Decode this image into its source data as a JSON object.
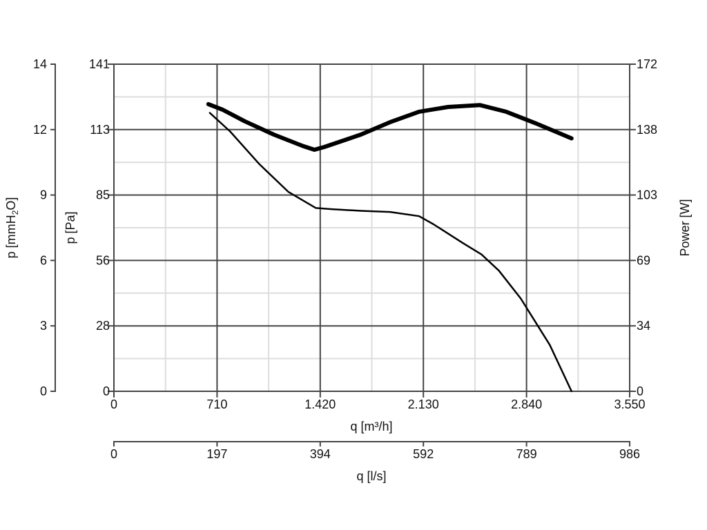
{
  "chart_data": {
    "type": "line",
    "title": "",
    "xlabel": "q [m³/h]",
    "x_secondary_label": "q [l/s]",
    "ylabel": "p [Pa]",
    "y_secondary_left_label": "p [mmH2O]",
    "y_secondary_left_label_parts": [
      "p [mmH",
      "2",
      "O]"
    ],
    "y_right_label": "Power [W]",
    "xlim": [
      0,
      3550
    ],
    "ylim": [
      0,
      141
    ],
    "y_right_lim": [
      0,
      172
    ],
    "grid": true,
    "x_ticks": [
      "0",
      "710",
      "1.420",
      "2.130",
      "2.840",
      "3.550"
    ],
    "x_secondary_ticks": [
      "0",
      "197",
      "394",
      "592",
      "789",
      "986"
    ],
    "y_ticks": [
      "0",
      "28",
      "56",
      "85",
      "113",
      "141"
    ],
    "y_secondary_left_ticks": [
      "0",
      "3",
      "6",
      "9",
      "12",
      "14"
    ],
    "y_right_ticks": [
      "0",
      "34",
      "69",
      "103",
      "138",
      "172"
    ],
    "series": [
      {
        "axis": "left",
        "x": [
          660,
          800,
          1000,
          1200,
          1390,
          1500,
          1700,
          1900,
          2100,
          2200,
          2400,
          2530,
          2650,
          2800,
          3000,
          3150
        ],
        "y": [
          120,
          112,
          98,
          86,
          79,
          78.5,
          77.8,
          77.3,
          75.5,
          72,
          64,
          59,
          52,
          40,
          20,
          0
        ]
      },
      {
        "axis": "right",
        "x": [
          650,
          750,
          900,
          1100,
          1300,
          1380,
          1450,
          1700,
          1900,
          2100,
          2300,
          2520,
          2700,
          2900,
          3150
        ],
        "y": [
          151,
          148,
          142,
          135,
          129,
          127,
          128.5,
          135,
          141.5,
          147,
          149.5,
          150.5,
          147,
          141,
          133
        ]
      }
    ]
  }
}
